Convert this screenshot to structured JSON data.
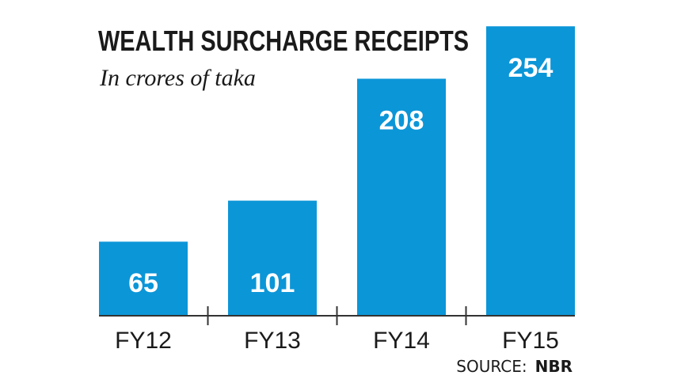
{
  "chart_data": {
    "type": "bar",
    "title": "WEALTH SURCHARGE RECEIPTS",
    "subtitle": "In crores of taka",
    "categories": [
      "FY12",
      "FY13",
      "FY14",
      "FY15"
    ],
    "values": [
      65,
      101,
      208,
      254
    ],
    "data_labels": [
      "65",
      "101",
      "208",
      "254"
    ],
    "ylim": [
      0,
      270
    ],
    "grid": false,
    "bar_color": "#0b96d8",
    "source_label": "SOURCE:",
    "source_name": "NBR"
  }
}
